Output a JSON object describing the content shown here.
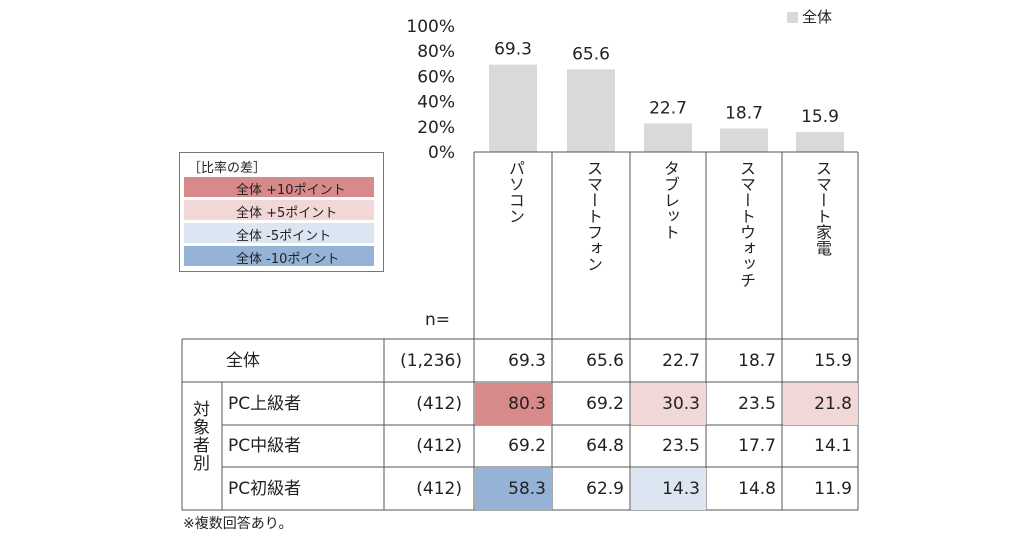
{
  "chart_data": {
    "type": "bar",
    "categories": [
      "パソコン",
      "スマートフォン",
      "タブレット",
      "スマートウォッチ",
      "スマート家電"
    ],
    "series": [
      {
        "name": "全体",
        "values": [
          69.3,
          65.6,
          22.7,
          18.7,
          15.9
        ]
      }
    ],
    "y_ticks": [
      "100%",
      "80%",
      "60%",
      "40%",
      "20%",
      "0%"
    ],
    "ylim": [
      0,
      100
    ],
    "bar_color": "#d9d9d9",
    "legend_placement": "top-right"
  },
  "diff_legend": {
    "title": "［比率の差］",
    "items": [
      {
        "label": "全体 +10ポイント",
        "color": "#d88a8a"
      },
      {
        "label": "全体 +5ポイント",
        "color": "#f2d7d7"
      },
      {
        "label": "全体 -5ポイント",
        "color": "#dce6f2"
      },
      {
        "label": "全体 -10ポイント",
        "color": "#95b3d7"
      }
    ]
  },
  "table": {
    "n_header": "n=",
    "group_label": "対象者別",
    "rows": [
      {
        "label": "全体",
        "n": "(1,236)",
        "values": [
          "69.3",
          "65.6",
          "22.7",
          "18.7",
          "15.9"
        ],
        "fills": [
          "",
          "",
          "",
          "",
          ""
        ]
      },
      {
        "label": "PC上級者",
        "n": "(412)",
        "values": [
          "80.3",
          "69.2",
          "30.3",
          "23.5",
          "21.8"
        ],
        "fills": [
          "#d88a8a",
          "",
          "#f2d7d7",
          "",
          "#f2d7d7"
        ]
      },
      {
        "label": "PC中級者",
        "n": "(412)",
        "values": [
          "69.2",
          "64.8",
          "23.5",
          "17.7",
          "14.1"
        ],
        "fills": [
          "",
          "",
          "",
          "",
          ""
        ]
      },
      {
        "label": "PC初級者",
        "n": "(412)",
        "values": [
          "58.3",
          "62.9",
          "14.3",
          "14.8",
          "11.9"
        ],
        "fills": [
          "#95b3d7",
          "",
          "#dce6f2",
          "",
          ""
        ]
      }
    ]
  },
  "note": "※複数回答あり。"
}
